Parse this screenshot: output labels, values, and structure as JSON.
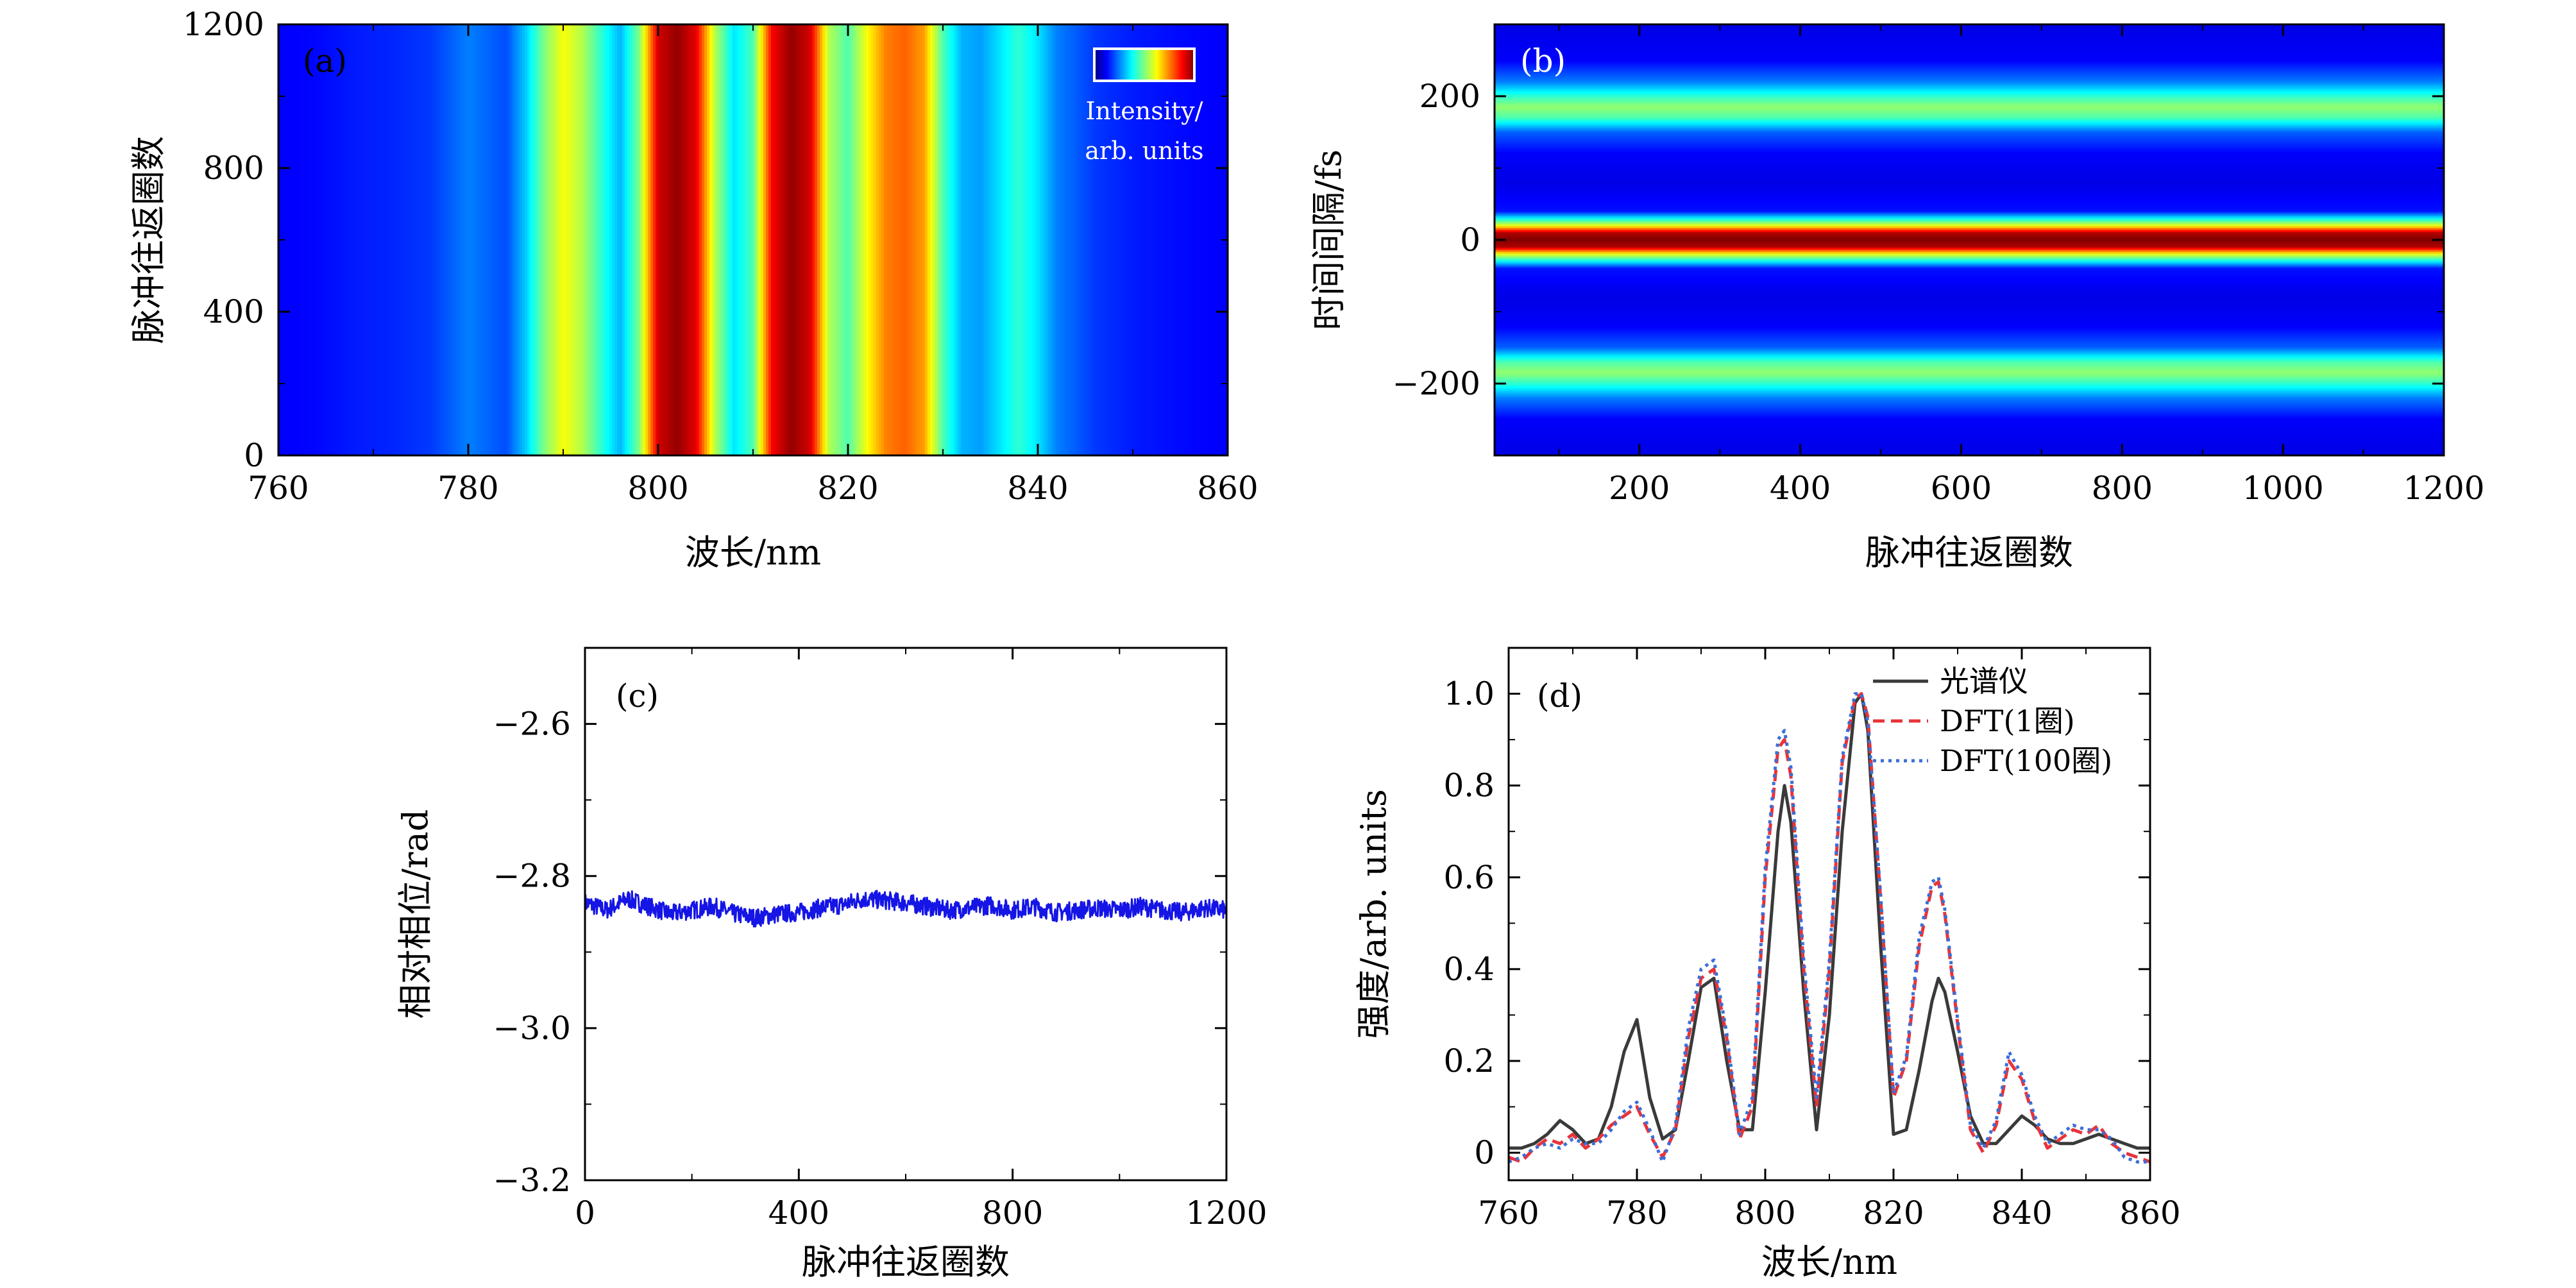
{
  "chart_data": [
    {
      "panel": "(a)",
      "type": "heatmap",
      "xlabel": "波长/nm",
      "ylabel": "脉冲往返圈数",
      "xlim": [
        760,
        860
      ],
      "ylim": [
        0,
        1200
      ],
      "xticks": [
        "760",
        "780",
        "800",
        "820",
        "840",
        "860"
      ],
      "yticks": [
        "0",
        "400",
        "800",
        "1200"
      ],
      "colorbar_label": [
        "Intensity/",
        "arb. units"
      ],
      "colormap": "jet",
      "spectrum_profile": {
        "wavelength_nm": [
          760,
          764,
          768,
          772,
          776,
          780,
          784,
          786,
          788,
          790,
          792,
          794,
          796,
          798,
          800,
          802,
          804,
          806,
          808,
          810,
          812,
          814,
          816,
          818,
          820,
          822,
          824,
          826,
          828,
          830,
          832,
          834,
          836,
          838,
          840,
          842,
          846,
          850,
          856,
          860
        ],
        "intensity": [
          0.12,
          0.13,
          0.15,
          0.16,
          0.18,
          0.25,
          0.2,
          0.32,
          0.5,
          0.62,
          0.55,
          0.42,
          0.3,
          0.5,
          0.92,
          0.98,
          0.9,
          0.55,
          0.35,
          0.45,
          0.88,
          0.98,
          0.92,
          0.55,
          0.45,
          0.62,
          0.75,
          0.78,
          0.72,
          0.45,
          0.3,
          0.28,
          0.35,
          0.42,
          0.35,
          0.25,
          0.18,
          0.15,
          0.13,
          0.12
        ]
      }
    },
    {
      "panel": "(b)",
      "type": "heatmap",
      "xlabel": "脉冲往返圈数",
      "ylabel": "时间间隔/fs",
      "xlim": [
        20,
        1200
      ],
      "ylim": [
        -300,
        300
      ],
      "xticks": [
        "200",
        "400",
        "600",
        "800",
        "1000",
        "1200"
      ],
      "yticks": [
        "−200",
        "0",
        "200"
      ],
      "colormap": "jet",
      "band_profile": {
        "delay_fs": [
          -300,
          -250,
          -220,
          -200,
          -185,
          -170,
          -150,
          -120,
          -80,
          -40,
          -20,
          -10,
          0,
          10,
          20,
          40,
          80,
          120,
          150,
          170,
          185,
          200,
          220,
          250,
          300
        ],
        "intensity": [
          0.1,
          0.12,
          0.25,
          0.42,
          0.52,
          0.45,
          0.22,
          0.12,
          0.1,
          0.14,
          0.6,
          0.95,
          1.0,
          0.95,
          0.6,
          0.14,
          0.1,
          0.12,
          0.22,
          0.45,
          0.52,
          0.42,
          0.25,
          0.12,
          0.1
        ]
      }
    },
    {
      "panel": "(c)",
      "type": "line",
      "xlabel": "脉冲往返圈数",
      "ylabel": "相对相位/rad",
      "xlim": [
        0,
        1200
      ],
      "ylim": [
        -3.2,
        -2.5
      ],
      "xticks": [
        "0",
        "400",
        "800",
        "1200"
      ],
      "yticks": [
        "−2.6",
        "−2.8",
        "−3.0",
        "−3.2"
      ],
      "color": "#1515e6",
      "series": [
        {
          "x": [
            0,
            40,
            80,
            120,
            160,
            200,
            240,
            280,
            320,
            360,
            400,
            440,
            480,
            520,
            560,
            600,
            640,
            680,
            720,
            760,
            800,
            840,
            880,
            920,
            960,
            1000,
            1040,
            1080,
            1120,
            1160,
            1200
          ],
          "y": [
            -2.835,
            -2.845,
            -2.83,
            -2.84,
            -2.85,
            -2.845,
            -2.84,
            -2.85,
            -2.855,
            -2.85,
            -2.848,
            -2.842,
            -2.838,
            -2.83,
            -2.832,
            -2.835,
            -2.84,
            -2.845,
            -2.842,
            -2.838,
            -2.845,
            -2.84,
            -2.848,
            -2.845,
            -2.842,
            -2.845,
            -2.84,
            -2.845,
            -2.848,
            -2.842,
            -2.845
          ],
          "noise_amplitude": 0.012
        }
      ]
    },
    {
      "panel": "(d)",
      "type": "line",
      "xlabel": "波长/nm",
      "ylabel": "强度/arb. units",
      "xlim": [
        760,
        860
      ],
      "ylim": [
        -0.06,
        1.1
      ],
      "xticks": [
        "760",
        "780",
        "800",
        "820",
        "840",
        "860"
      ],
      "yticks": [
        "0",
        "0.2",
        "0.4",
        "0.6",
        "0.8",
        "1.0"
      ],
      "legend_position": "top-right",
      "series": [
        {
          "name": "光谱仪",
          "color": "#3a3a3a",
          "style": "solid",
          "x": [
            760,
            762,
            764,
            766,
            768,
            770,
            772,
            774,
            776,
            778,
            780,
            782,
            784,
            786,
            788,
            790,
            792,
            794,
            796,
            798,
            800,
            802,
            803,
            804,
            806,
            808,
            810,
            812,
            814,
            815,
            816,
            818,
            820,
            822,
            824,
            826,
            827,
            828,
            830,
            832,
            834,
            836,
            838,
            840,
            842,
            844,
            846,
            848,
            850,
            852,
            854,
            856,
            858,
            860
          ],
          "y": [
            0.01,
            0.01,
            0.02,
            0.04,
            0.07,
            0.05,
            0.02,
            0.03,
            0.1,
            0.22,
            0.29,
            0.12,
            0.03,
            0.05,
            0.2,
            0.36,
            0.38,
            0.2,
            0.05,
            0.05,
            0.35,
            0.7,
            0.8,
            0.72,
            0.35,
            0.05,
            0.3,
            0.7,
            0.98,
            1.0,
            0.92,
            0.45,
            0.04,
            0.05,
            0.18,
            0.33,
            0.38,
            0.35,
            0.22,
            0.08,
            0.02,
            0.02,
            0.05,
            0.08,
            0.06,
            0.03,
            0.02,
            0.02,
            0.03,
            0.04,
            0.03,
            0.02,
            0.01,
            0.01
          ]
        },
        {
          "name": "DFT(1圈)",
          "color": "#e8333a",
          "style": "dashed",
          "x": [
            760,
            762,
            764,
            766,
            768,
            770,
            772,
            774,
            776,
            778,
            780,
            782,
            784,
            786,
            788,
            790,
            792,
            794,
            796,
            798,
            800,
            802,
            803,
            804,
            806,
            808,
            810,
            812,
            814,
            815,
            816,
            818,
            820,
            822,
            824,
            826,
            827,
            828,
            830,
            832,
            834,
            836,
            838,
            840,
            842,
            844,
            846,
            848,
            850,
            852,
            854,
            856,
            858,
            860
          ],
          "y": [
            -0.01,
            -0.02,
            0.01,
            0.03,
            0.02,
            0.04,
            0.01,
            0.03,
            0.06,
            0.08,
            0.1,
            0.04,
            -0.01,
            0.05,
            0.25,
            0.38,
            0.4,
            0.25,
            0.03,
            0.1,
            0.6,
            0.88,
            0.9,
            0.82,
            0.4,
            0.1,
            0.4,
            0.85,
            0.99,
            1.0,
            0.95,
            0.55,
            0.12,
            0.2,
            0.45,
            0.58,
            0.59,
            0.52,
            0.28,
            0.05,
            0.0,
            0.06,
            0.2,
            0.16,
            0.07,
            0.01,
            0.03,
            0.05,
            0.04,
            0.06,
            0.02,
            0.0,
            -0.01,
            -0.02
          ]
        },
        {
          "name": "DFT(100圈)",
          "color": "#3a6fd8",
          "style": "dotted",
          "x": [
            760,
            762,
            764,
            766,
            768,
            770,
            772,
            774,
            776,
            778,
            780,
            782,
            784,
            786,
            788,
            790,
            792,
            794,
            796,
            798,
            800,
            802,
            803,
            804,
            806,
            808,
            810,
            812,
            814,
            815,
            816,
            818,
            820,
            822,
            824,
            826,
            827,
            828,
            830,
            832,
            834,
            836,
            838,
            840,
            842,
            844,
            846,
            848,
            850,
            852,
            854,
            856,
            858,
            860
          ],
          "y": [
            -0.02,
            -0.01,
            0.01,
            0.02,
            0.01,
            0.03,
            0.02,
            0.02,
            0.05,
            0.09,
            0.11,
            0.05,
            -0.02,
            0.06,
            0.27,
            0.4,
            0.42,
            0.26,
            0.04,
            0.12,
            0.62,
            0.9,
            0.92,
            0.84,
            0.42,
            0.12,
            0.42,
            0.86,
            1.0,
            1.0,
            0.94,
            0.56,
            0.13,
            0.21,
            0.47,
            0.59,
            0.6,
            0.53,
            0.29,
            0.06,
            0.01,
            0.07,
            0.22,
            0.17,
            0.08,
            0.02,
            0.04,
            0.06,
            0.05,
            0.05,
            0.03,
            -0.01,
            -0.02,
            -0.02
          ]
        }
      ]
    }
  ]
}
